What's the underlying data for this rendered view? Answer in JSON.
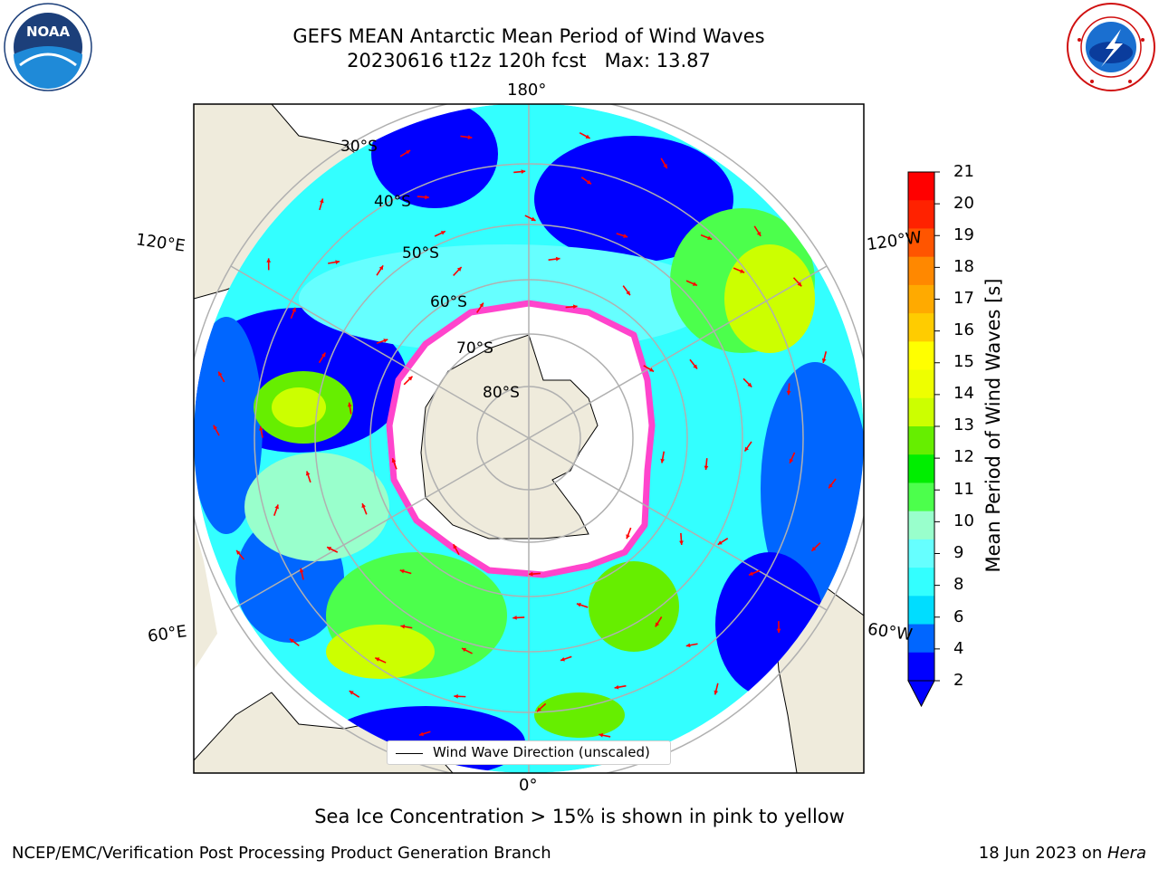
{
  "header": {
    "title_line1": "GEFS MEAN Antarctic Mean Period of Wind Waves",
    "title_line2": "20230616 t12z 120h fcst   Max: 13.87"
  },
  "logos": {
    "left": {
      "text": "NOAA",
      "ring_text": "NATIONAL OCEANIC AND ATMOSPHERIC ADMINISTRATION · U.S. DEPARTMENT OF COMMERCE"
    },
    "right": {
      "ring_text": "NATIONAL WEATHER SERVICE"
    }
  },
  "map": {
    "longitude_labels": {
      "top": "180°",
      "left": "120°E",
      "right": "120°W",
      "bottom_left": "60°E",
      "bottom_right": "60°W",
      "bottom": "0°"
    },
    "latitude_labels": [
      "30°S",
      "40°S",
      "50°S",
      "60°S",
      "70°S",
      "80°S"
    ],
    "legend": {
      "label": "Wind Wave Direction (unscaled)"
    }
  },
  "colorbar": {
    "label": "Mean Period of Wind Waves [s]",
    "ticks": [
      "21",
      "20",
      "19",
      "18",
      "17",
      "16",
      "15",
      "14",
      "13",
      "12",
      "11",
      "10",
      "9",
      "8",
      "6",
      "4",
      "2"
    ],
    "colors": [
      "#0000ff",
      "#0066ff",
      "#00ddff",
      "#33ffff",
      "#66ffff",
      "#99ffcc",
      "#4cff4c",
      "#00ee00",
      "#66ee00",
      "#ccff00",
      "#eeff00",
      "#ffff00",
      "#ffcc00",
      "#ffaa00",
      "#ff8800",
      "#ff5500",
      "#ff2200",
      "#ff0000"
    ],
    "extend_color": "#0000ff"
  },
  "caption": "Sea Ice Concentration > 15% is shown in pink to yellow",
  "footer": {
    "left": "NCEP/EMC/Verification Post Processing Product Generation Branch",
    "right_prefix": "18 Jun 2023 on ",
    "right_italic": "Hera"
  },
  "colors": {
    "land": "#efebdc",
    "ice": "#ffffff",
    "ice_edge": "#ff44cc",
    "arrow": "#ff0000",
    "grid": "#b0b0b0"
  }
}
